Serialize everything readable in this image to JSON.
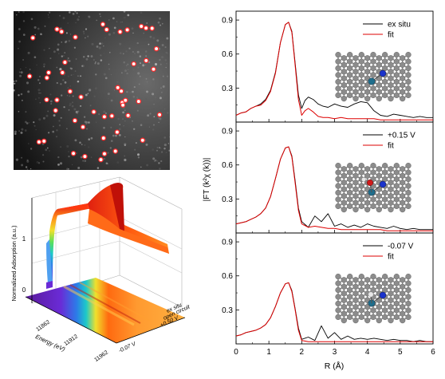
{
  "colors": {
    "exp": "#000000",
    "fit": "#dd0000",
    "carbon": "#8c8c8c",
    "nitrogen": "#1a33cc",
    "metal": "#1f6e8c",
    "oxygen": "#d11a1a",
    "hydrogen": "#e8e8e8",
    "sa_dot": "#ff2a2a"
  },
  "haadf": {
    "description_label": "",
    "dot_count": 48
  },
  "surface3d": {
    "zlabel": "Normalized Adsorption (a.u.)",
    "xlabel": "Energy (eV)",
    "z_ticks": [
      "0",
      "1"
    ],
    "energy_ticks": [
      "11862",
      "11912",
      "11962"
    ],
    "conditions": [
      "ex situ",
      "open circuit",
      "+0.50 V",
      "-0.07 V"
    ]
  },
  "chart_data": {
    "type": "line",
    "xlabel": "R (Å)",
    "ylabel": "|FT (k²χ (k))|",
    "xlim": [
      0,
      6
    ],
    "xticks": [
      "0",
      "1",
      "2",
      "3",
      "4",
      "5",
      "6"
    ],
    "yticks": [
      "0.3",
      "0.6",
      "0.9"
    ],
    "panels": [
      {
        "ylim": [
          0,
          0.95
        ],
        "series": [
          {
            "name": "ex situ",
            "x": [
              0.0,
              0.15,
              0.3,
              0.45,
              0.6,
              0.75,
              0.9,
              1.05,
              1.2,
              1.35,
              1.5,
              1.6,
              1.7,
              1.8,
              1.9,
              2.0,
              2.1,
              2.2,
              2.35,
              2.5,
              2.65,
              2.8,
              3.0,
              3.2,
              3.4,
              3.6,
              3.8,
              4.0,
              4.2,
              4.4,
              4.6,
              4.8,
              5.0,
              5.2,
              5.4,
              5.6,
              5.8,
              6.0
            ],
            "y": [
              0.06,
              0.08,
              0.09,
              0.12,
              0.14,
              0.16,
              0.2,
              0.28,
              0.44,
              0.7,
              0.86,
              0.88,
              0.8,
              0.52,
              0.24,
              0.12,
              0.19,
              0.22,
              0.2,
              0.16,
              0.14,
              0.13,
              0.16,
              0.14,
              0.13,
              0.16,
              0.18,
              0.17,
              0.1,
              0.06,
              0.05,
              0.07,
              0.06,
              0.05,
              0.04,
              0.05,
              0.04,
              0.04
            ]
          },
          {
            "name": "fit",
            "x": [
              0.0,
              0.15,
              0.3,
              0.45,
              0.6,
              0.75,
              0.9,
              1.05,
              1.2,
              1.35,
              1.5,
              1.6,
              1.7,
              1.8,
              1.9,
              2.0,
              2.1,
              2.2,
              2.35,
              2.5,
              2.65,
              2.8,
              3.0,
              3.2,
              3.4,
              3.6,
              3.8,
              4.0,
              4.2,
              4.4,
              4.6,
              4.8,
              5.0,
              5.2,
              5.4,
              5.6,
              5.8,
              6.0
            ],
            "y": [
              0.06,
              0.08,
              0.09,
              0.12,
              0.14,
              0.15,
              0.19,
              0.27,
              0.43,
              0.7,
              0.86,
              0.88,
              0.79,
              0.5,
              0.2,
              0.06,
              0.1,
              0.12,
              0.09,
              0.05,
              0.04,
              0.04,
              0.03,
              0.04,
              0.03,
              0.03,
              0.03,
              0.03,
              0.03,
              0.02,
              0.02,
              0.02,
              0.02,
              0.02,
              0.02,
              0.02,
              0.02,
              0.02
            ]
          }
        ]
      },
      {
        "ylim": [
          0,
          0.95
        ],
        "series": [
          {
            "name": "+0.15 V",
            "x": [
              0.0,
              0.15,
              0.3,
              0.45,
              0.6,
              0.75,
              0.9,
              1.05,
              1.2,
              1.35,
              1.5,
              1.6,
              1.7,
              1.8,
              1.9,
              2.0,
              2.2,
              2.4,
              2.6,
              2.8,
              3.0,
              3.2,
              3.4,
              3.6,
              3.8,
              4.0,
              4.2,
              4.4,
              4.6,
              4.8,
              5.0,
              5.2,
              5.4,
              5.6,
              5.8,
              6.0
            ],
            "y": [
              0.08,
              0.09,
              0.1,
              0.12,
              0.14,
              0.17,
              0.22,
              0.32,
              0.48,
              0.65,
              0.75,
              0.76,
              0.68,
              0.46,
              0.22,
              0.1,
              0.05,
              0.15,
              0.1,
              0.17,
              0.06,
              0.08,
              0.05,
              0.07,
              0.05,
              0.08,
              0.06,
              0.05,
              0.04,
              0.06,
              0.04,
              0.03,
              0.04,
              0.03,
              0.03,
              0.03
            ]
          },
          {
            "name": "fit",
            "x": [
              0.0,
              0.15,
              0.3,
              0.45,
              0.6,
              0.75,
              0.9,
              1.05,
              1.2,
              1.35,
              1.5,
              1.6,
              1.7,
              1.8,
              1.9,
              2.0,
              2.2,
              2.4,
              2.6,
              2.8,
              3.0,
              3.2,
              3.4,
              3.6,
              3.8,
              4.0,
              4.2,
              4.4,
              4.6,
              4.8,
              5.0,
              5.2,
              5.4,
              5.6,
              5.8,
              6.0
            ],
            "y": [
              0.08,
              0.09,
              0.1,
              0.12,
              0.14,
              0.17,
              0.22,
              0.32,
              0.48,
              0.65,
              0.75,
              0.76,
              0.67,
              0.44,
              0.2,
              0.08,
              0.05,
              0.06,
              0.05,
              0.04,
              0.04,
              0.03,
              0.03,
              0.03,
              0.03,
              0.03,
              0.03,
              0.03,
              0.02,
              0.02,
              0.02,
              0.02,
              0.02,
              0.02,
              0.02,
              0.02
            ]
          }
        ]
      },
      {
        "ylim": [
          0,
          0.95
        ],
        "series": [
          {
            "name": "-0.07 V",
            "x": [
              0.0,
              0.15,
              0.3,
              0.45,
              0.6,
              0.75,
              0.9,
              1.05,
              1.2,
              1.35,
              1.5,
              1.6,
              1.7,
              1.8,
              1.9,
              2.0,
              2.2,
              2.4,
              2.6,
              2.8,
              3.0,
              3.2,
              3.4,
              3.6,
              3.8,
              4.0,
              4.2,
              4.4,
              4.6,
              4.8,
              5.0,
              5.2,
              5.4,
              5.6,
              5.8,
              6.0
            ],
            "y": [
              0.07,
              0.08,
              0.1,
              0.11,
              0.12,
              0.14,
              0.17,
              0.23,
              0.33,
              0.45,
              0.53,
              0.54,
              0.47,
              0.31,
              0.14,
              0.04,
              0.06,
              0.03,
              0.16,
              0.05,
              0.1,
              0.04,
              0.07,
              0.04,
              0.05,
              0.04,
              0.05,
              0.04,
              0.03,
              0.04,
              0.03,
              0.03,
              0.02,
              0.03,
              0.02,
              0.02
            ]
          },
          {
            "name": "fit",
            "x": [
              0.0,
              0.15,
              0.3,
              0.45,
              0.6,
              0.75,
              0.9,
              1.05,
              1.2,
              1.35,
              1.5,
              1.6,
              1.7,
              1.8,
              1.9,
              2.0,
              2.2,
              2.4,
              2.6,
              2.8,
              3.0,
              3.2,
              3.4,
              3.6,
              3.8,
              4.0,
              4.2,
              4.4,
              4.6,
              4.8,
              5.0,
              5.2,
              5.4,
              5.6,
              5.8,
              6.0
            ],
            "y": [
              0.07,
              0.08,
              0.1,
              0.11,
              0.12,
              0.14,
              0.17,
              0.23,
              0.33,
              0.45,
              0.53,
              0.54,
              0.46,
              0.3,
              0.12,
              0.03,
              0.02,
              0.02,
              0.02,
              0.02,
              0.02,
              0.02,
              0.02,
              0.02,
              0.02,
              0.02,
              0.02,
              0.02,
              0.02,
              0.02,
              0.02,
              0.02,
              0.02,
              0.02,
              0.02,
              0.02
            ]
          }
        ]
      }
    ]
  }
}
